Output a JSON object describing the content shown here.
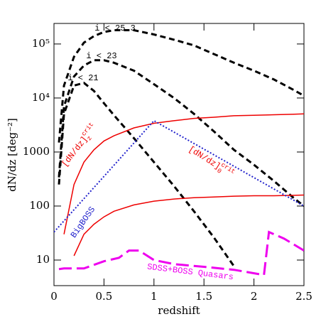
{
  "chart_data": {
    "type": "line",
    "xlabel": "redshift",
    "ylabel": "dN/dz [deg⁻²]",
    "xlim": [
      0,
      2.5
    ],
    "xticks": [
      0,
      0.5,
      1,
      1.5,
      2,
      2.5
    ],
    "ylim": [
      3.36,
      240000
    ],
    "ylog": true,
    "yticks": [
      {
        "value": 10,
        "label": "10"
      },
      {
        "value": 100,
        "label": "100"
      },
      {
        "value": 1000,
        "label": "1000"
      },
      {
        "value": 10000,
        "label": "10⁴"
      },
      {
        "value": 100000,
        "label": "10⁵"
      }
    ],
    "series": [
      {
        "name": "i < 25.3",
        "color": "#000000",
        "style": "dashed",
        "x": [
          0.05,
          0.1,
          0.2,
          0.3,
          0.4,
          0.5,
          0.6,
          0.8,
          1.0,
          1.2,
          1.4,
          1.6,
          1.8,
          2.0,
          2.2,
          2.4,
          2.5
        ],
        "values": [
          1500,
          17000,
          58000,
          106000,
          140000,
          167000,
          180000,
          180000,
          150000,
          120000,
          94000,
          65000,
          45000,
          32000,
          22000,
          14000,
          11000
        ]
      },
      {
        "name": "i < 23",
        "color": "#000000",
        "style": "dashed",
        "x": [
          0.05,
          0.1,
          0.2,
          0.3,
          0.4,
          0.5,
          0.6,
          0.8,
          1.0,
          1.2,
          1.4,
          1.6,
          1.8,
          2.0,
          2.2,
          2.4,
          2.5
        ],
        "values": [
          340,
          7000,
          25000,
          40000,
          50000,
          50000,
          45000,
          32000,
          18000,
          10000,
          5100,
          2400,
          1100,
          580,
          290,
          140,
          100
        ]
      },
      {
        "name": "i < 21",
        "color": "#000000",
        "style": "dashed",
        "x": [
          0.05,
          0.1,
          0.2,
          0.3,
          0.4,
          0.5,
          0.6,
          0.8,
          1.0,
          1.2,
          1.4,
          1.6,
          1.8
        ],
        "values": [
          250,
          5100,
          17000,
          19000,
          13500,
          8000,
          4800,
          1800,
          650,
          235,
          80,
          26,
          7.7
        ]
      },
      {
        "name": "[dN/dz]",
        "superscript": "crit",
        "subscript": "z",
        "color": "#ee0000",
        "style": "solid",
        "x": [
          0.1,
          0.2,
          0.3,
          0.4,
          0.5,
          0.6,
          0.8,
          1.0,
          1.2,
          1.4,
          1.6,
          1.8,
          2.0,
          2.2,
          2.4,
          2.5
        ],
        "values": [
          30,
          250,
          650,
          1100,
          1600,
          2000,
          2800,
          3400,
          3800,
          4200,
          4400,
          4700,
          4800,
          4900,
          5000,
          5100
        ]
      },
      {
        "name": "[dN/dz]",
        "superscript": "crit",
        "subscript": "0",
        "color": "#ee0000",
        "style": "solid",
        "x": [
          0.2,
          0.3,
          0.4,
          0.5,
          0.6,
          0.8,
          1.0,
          1.2,
          1.4,
          1.6,
          1.8,
          2.0,
          2.2,
          2.4,
          2.5
        ],
        "values": [
          12,
          30,
          46,
          63,
          80,
          105,
          123,
          135,
          143,
          147,
          152,
          155,
          155,
          158,
          160
        ]
      },
      {
        "name": "BigBOSS",
        "color": "#2222cc",
        "style": "dotted",
        "x": [
          0,
          1.0,
          2.5
        ],
        "values": [
          33,
          3800,
          100
        ]
      },
      {
        "name": "SDSS+BOSS Quasars",
        "color": "#ee00ee",
        "style": "longdash",
        "x": [
          0.05,
          0.1,
          0.3,
          0.5,
          0.65,
          0.75,
          0.85,
          1.0,
          1.2,
          1.5,
          1.8,
          2.1,
          2.15,
          2.3,
          2.5
        ],
        "values": [
          6.8,
          7,
          7,
          9.5,
          11,
          15,
          15,
          10,
          8.4,
          7.5,
          6.6,
          5.3,
          33,
          25,
          15
        ]
      }
    ]
  }
}
